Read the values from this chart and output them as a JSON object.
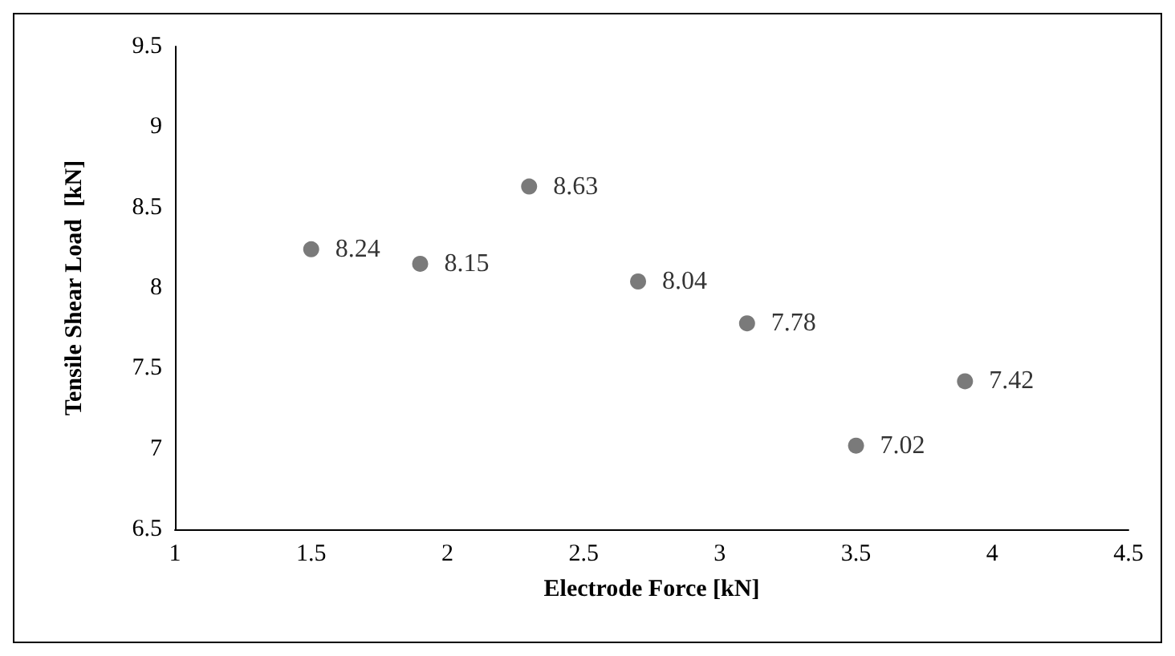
{
  "chart_data": {
    "type": "scatter",
    "xlabel": "Electrode Force [kN]",
    "ylabel": "Tensile Shear Load  [kN]",
    "x": [
      1.5,
      1.9,
      2.3,
      2.7,
      3.1,
      3.5,
      3.9
    ],
    "values": [
      8.24,
      8.15,
      8.63,
      8.04,
      7.78,
      7.02,
      7.42
    ],
    "color": "#595959",
    "xlim": [
      1,
      4.5
    ],
    "xticks": [
      1,
      1.5,
      2,
      2.5,
      3,
      3.5,
      4,
      4.5
    ],
    "ylim": [
      6.5,
      9.5
    ],
    "yticks": [
      6.5,
      7,
      7.5,
      8,
      8.5,
      9,
      9.5
    ],
    "grid": false,
    "marker": "circle",
    "data_labels": true
  }
}
